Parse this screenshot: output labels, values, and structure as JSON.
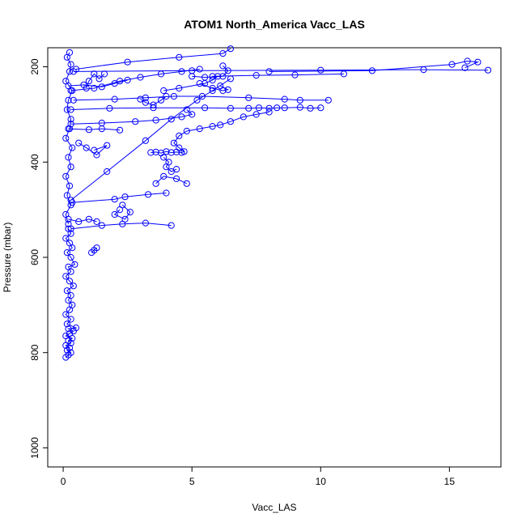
{
  "chart_data": {
    "type": "scatter",
    "title": "ATOM1 North_America Vacc_LAS",
    "xlabel": "Vacc_LAS",
    "ylabel": "Pressure (mbar)",
    "xlim": [
      -0.6,
      17.0
    ],
    "ylim": [
      1040,
      160
    ],
    "y_reversed": true,
    "xticks": [
      0,
      5,
      10,
      15
    ],
    "yticks": [
      200,
      400,
      600,
      800,
      1000
    ],
    "color": "#0000ff",
    "marker": "open-circle",
    "connected": true,
    "series": [
      {
        "points": [
          [
            0.1,
            810
          ],
          [
            0.2,
            805
          ],
          [
            0.3,
            800
          ],
          [
            0.15,
            795
          ],
          [
            0.25,
            790
          ],
          [
            0.1,
            785
          ],
          [
            0.3,
            780
          ],
          [
            0.2,
            775
          ],
          [
            0.35,
            770
          ],
          [
            0.1,
            765
          ],
          [
            0.25,
            760
          ],
          [
            0.4,
            755
          ],
          [
            0.2,
            750
          ],
          [
            0.5,
            748
          ],
          [
            0.15,
            740
          ],
          [
            0.3,
            730
          ],
          [
            0.1,
            720
          ],
          [
            0.25,
            710
          ],
          [
            0.35,
            700
          ],
          [
            0.2,
            690
          ],
          [
            0.3,
            680
          ],
          [
            0.15,
            670
          ],
          [
            0.4,
            660
          ],
          [
            0.25,
            650
          ],
          [
            0.1,
            640
          ],
          [
            0.3,
            630
          ],
          [
            0.2,
            620
          ],
          [
            0.45,
            615
          ],
          [
            0.3,
            600
          ],
          [
            0.15,
            590
          ],
          [
            0.35,
            580
          ],
          [
            0.25,
            570
          ],
          [
            0.1,
            560
          ],
          [
            0.3,
            550
          ],
          [
            0.2,
            540
          ]
        ]
      },
      {
        "points": [
          [
            0.3,
            540
          ],
          [
            1.5,
            533
          ],
          [
            2.3,
            530
          ],
          [
            3.2,
            528
          ],
          [
            4.2,
            533
          ]
        ]
      },
      {
        "points": [
          [
            0.2,
            520
          ],
          [
            0.6,
            525
          ],
          [
            1.0,
            520
          ],
          [
            1.3,
            525
          ]
        ]
      },
      {
        "points": [
          [
            1.1,
            590
          ],
          [
            1.2,
            585
          ],
          [
            1.3,
            580
          ]
        ]
      },
      {
        "points": [
          [
            0.2,
            530
          ],
          [
            0.1,
            510
          ],
          [
            0.3,
            490
          ],
          [
            0.15,
            470
          ],
          [
            0.25,
            450
          ],
          [
            0.1,
            430
          ],
          [
            0.3,
            410
          ],
          [
            0.2,
            390
          ],
          [
            0.35,
            370
          ],
          [
            0.1,
            350
          ],
          [
            0.25,
            330
          ],
          [
            0.3,
            310
          ],
          [
            0.15,
            290
          ],
          [
            0.2,
            270
          ],
          [
            0.35,
            250
          ],
          [
            0.1,
            230
          ],
          [
            0.25,
            210
          ],
          [
            0.3,
            195
          ],
          [
            0.15,
            180
          ],
          [
            0.25,
            170
          ]
        ]
      },
      {
        "points": [
          [
            0.35,
            485
          ],
          [
            2.0,
            478
          ],
          [
            2.4,
            473
          ],
          [
            3.3,
            468
          ],
          [
            4.0,
            465
          ]
        ]
      },
      {
        "points": [
          [
            2.2,
            500
          ],
          [
            2.0,
            510
          ],
          [
            2.4,
            520
          ],
          [
            2.6,
            505
          ],
          [
            2.3,
            490
          ]
        ]
      },
      {
        "points": [
          [
            3.6,
            445
          ],
          [
            3.9,
            430
          ],
          [
            4.4,
            435
          ],
          [
            4.8,
            445
          ]
        ]
      },
      {
        "points": [
          [
            3.4,
            380
          ],
          [
            3.6,
            379
          ],
          [
            3.8,
            381
          ],
          [
            4.0,
            378
          ],
          [
            4.2,
            380
          ],
          [
            4.4,
            379
          ],
          [
            4.6,
            380
          ],
          [
            4.7,
            378
          ],
          [
            4.5,
            370
          ],
          [
            4.3,
            360
          ],
          [
            4.5,
            345
          ],
          [
            4.8,
            335
          ],
          [
            5.3,
            330
          ],
          [
            5.8,
            325
          ],
          [
            6.1,
            322
          ],
          [
            6.5,
            315
          ],
          [
            7.0,
            305
          ],
          [
            7.5,
            300
          ],
          [
            8.0,
            295
          ]
        ]
      },
      {
        "points": [
          [
            3.9,
            390
          ],
          [
            4.1,
            400
          ],
          [
            4.0,
            410
          ],
          [
            4.2,
            420
          ],
          [
            4.4,
            415
          ]
        ]
      },
      {
        "points": [
          [
            0.3,
            320
          ],
          [
            1.5,
            318
          ],
          [
            2.8,
            315
          ],
          [
            3.6,
            312
          ],
          [
            4.6,
            305
          ],
          [
            5.0,
            300
          ],
          [
            4.8,
            290
          ]
        ]
      },
      {
        "points": [
          [
            0.2,
            330
          ],
          [
            1.0,
            332
          ],
          [
            1.5,
            330
          ],
          [
            2.2,
            333
          ]
        ]
      },
      {
        "points": [
          [
            0.3,
            290
          ],
          [
            1.8,
            287
          ],
          [
            3.5,
            286
          ],
          [
            5.5,
            286
          ],
          [
            6.5,
            287
          ],
          [
            7.2,
            287
          ],
          [
            7.6,
            286
          ],
          [
            8.0,
            287
          ],
          [
            8.3,
            286
          ],
          [
            8.6,
            286
          ],
          [
            9.2,
            285
          ],
          [
            9.6,
            287
          ],
          [
            10.0,
            286
          ]
        ]
      },
      {
        "points": [
          [
            0.4,
            270
          ],
          [
            2.0,
            268
          ],
          [
            3.2,
            265
          ],
          [
            4.3,
            262
          ],
          [
            5.4,
            262
          ],
          [
            7.2,
            265
          ],
          [
            8.6,
            268
          ],
          [
            9.2,
            270
          ],
          [
            10.3,
            270
          ]
        ]
      },
      {
        "points": [
          [
            3.0,
            268
          ],
          [
            3.2,
            275
          ],
          [
            3.5,
            280
          ],
          [
            3.8,
            270
          ],
          [
            4.0,
            262
          ]
        ]
      },
      {
        "points": [
          [
            0.3,
            250
          ],
          [
            1.2,
            245
          ],
          [
            2.2,
            230
          ],
          [
            3.0,
            222
          ],
          [
            3.8,
            215
          ],
          [
            4.6,
            210
          ],
          [
            5.3,
            205
          ]
        ]
      },
      {
        "points": [
          [
            0.2,
            240
          ],
          [
            0.8,
            238
          ],
          [
            1.5,
            242
          ],
          [
            2.0,
            235
          ],
          [
            2.5,
            228
          ]
        ]
      },
      {
        "points": [
          [
            3.9,
            250
          ],
          [
            4.5,
            245
          ],
          [
            5.5,
            235
          ],
          [
            5.8,
            228
          ],
          [
            6.0,
            220
          ]
        ]
      },
      {
        "points": [
          [
            5.3,
            235
          ],
          [
            5.8,
            245
          ],
          [
            6.2,
            250
          ],
          [
            6.4,
            248
          ],
          [
            6.1,
            240
          ]
        ]
      },
      {
        "points": [
          [
            5.0,
            220
          ],
          [
            5.5,
            222
          ],
          [
            6.2,
            220
          ],
          [
            6.4,
            208
          ],
          [
            6.2,
            198
          ]
        ]
      },
      {
        "points": [
          [
            5.8,
            220
          ],
          [
            7.5,
            218
          ],
          [
            9.0,
            217
          ],
          [
            10.9,
            215
          ]
        ]
      },
      {
        "points": [
          [
            0.4,
            210
          ],
          [
            5.0,
            208
          ],
          [
            10.0,
            207
          ],
          [
            14.0,
            206
          ],
          [
            16.5,
            207
          ]
        ]
      },
      {
        "points": [
          [
            8.0,
            210
          ],
          [
            12.0,
            208
          ],
          [
            15.1,
            195
          ],
          [
            15.7,
            188
          ],
          [
            16.1,
            190
          ],
          [
            15.6,
            202
          ]
        ]
      },
      {
        "points": [
          [
            0.3,
            480
          ],
          [
            1.7,
            420
          ],
          [
            3.2,
            355
          ],
          [
            4.2,
            310
          ],
          [
            5.2,
            270
          ],
          [
            5.8,
            250
          ],
          [
            6.5,
            225
          ]
        ]
      },
      {
        "points": [
          [
            0.5,
            205
          ],
          [
            2.5,
            190
          ],
          [
            4.5,
            180
          ],
          [
            6.2,
            172
          ],
          [
            6.5,
            162
          ]
        ]
      },
      {
        "points": [
          [
            0.9,
            245
          ],
          [
            1.0,
            230
          ],
          [
            1.2,
            215
          ],
          [
            1.4,
            225
          ],
          [
            1.6,
            215
          ]
        ]
      },
      {
        "points": [
          [
            0.6,
            360
          ],
          [
            0.9,
            370
          ],
          [
            1.3,
            385
          ],
          [
            1.7,
            365
          ],
          [
            1.2,
            375
          ]
        ]
      }
    ]
  }
}
